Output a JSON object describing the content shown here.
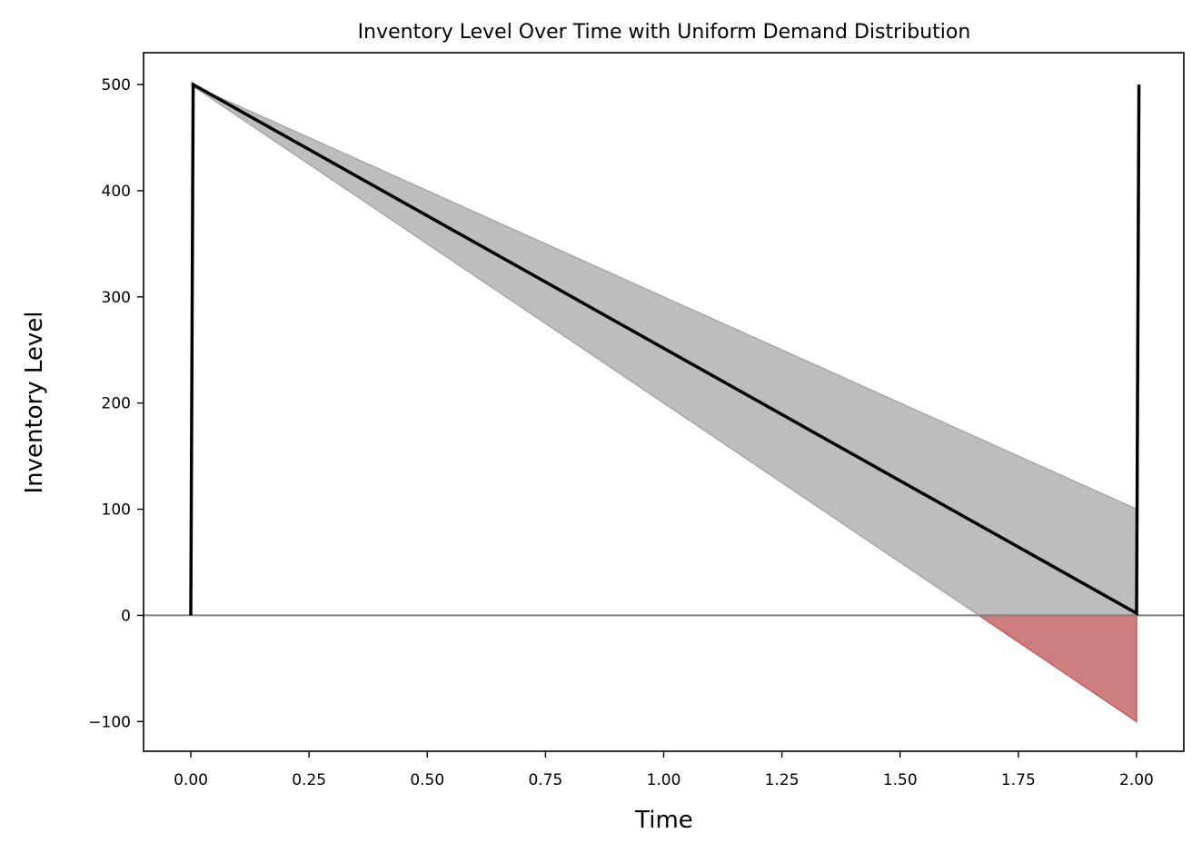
{
  "chart_data": {
    "type": "line",
    "title": "Inventory Level Over Time with Uniform Demand Distribution",
    "xlabel": "Time",
    "ylabel": "Inventory Level",
    "xlim": [
      -0.1,
      2.1
    ],
    "ylim": [
      -128,
      530
    ],
    "xticks": [
      0.0,
      0.25,
      0.5,
      0.75,
      1.0,
      1.25,
      1.5,
      1.75,
      2.0
    ],
    "xtick_labels": [
      "0.00",
      "0.25",
      "0.50",
      "0.75",
      "1.00",
      "1.25",
      "1.50",
      "1.75",
      "2.00"
    ],
    "yticks": [
      -100,
      0,
      100,
      200,
      300,
      400,
      500
    ],
    "ytick_labels": [
      "−100",
      "0",
      "100",
      "200",
      "300",
      "400",
      "500"
    ],
    "grid": false,
    "reference_line": {
      "y": 0,
      "color": "#808080"
    },
    "band": {
      "x": [
        0.0,
        2.0
      ],
      "upper": [
        500,
        100
      ],
      "lower": [
        500,
        -100
      ],
      "color": "#bdbdbd",
      "edge_color": "#a8a8a8"
    },
    "stockout_region": {
      "color": "#cd7f7f",
      "edge_color": "#c85a5a"
    },
    "series": [
      {
        "x": [
          0.0,
          0.005,
          2.0,
          2.005
        ],
        "y": [
          0,
          500,
          2,
          500
        ],
        "color": "#000000"
      }
    ]
  }
}
